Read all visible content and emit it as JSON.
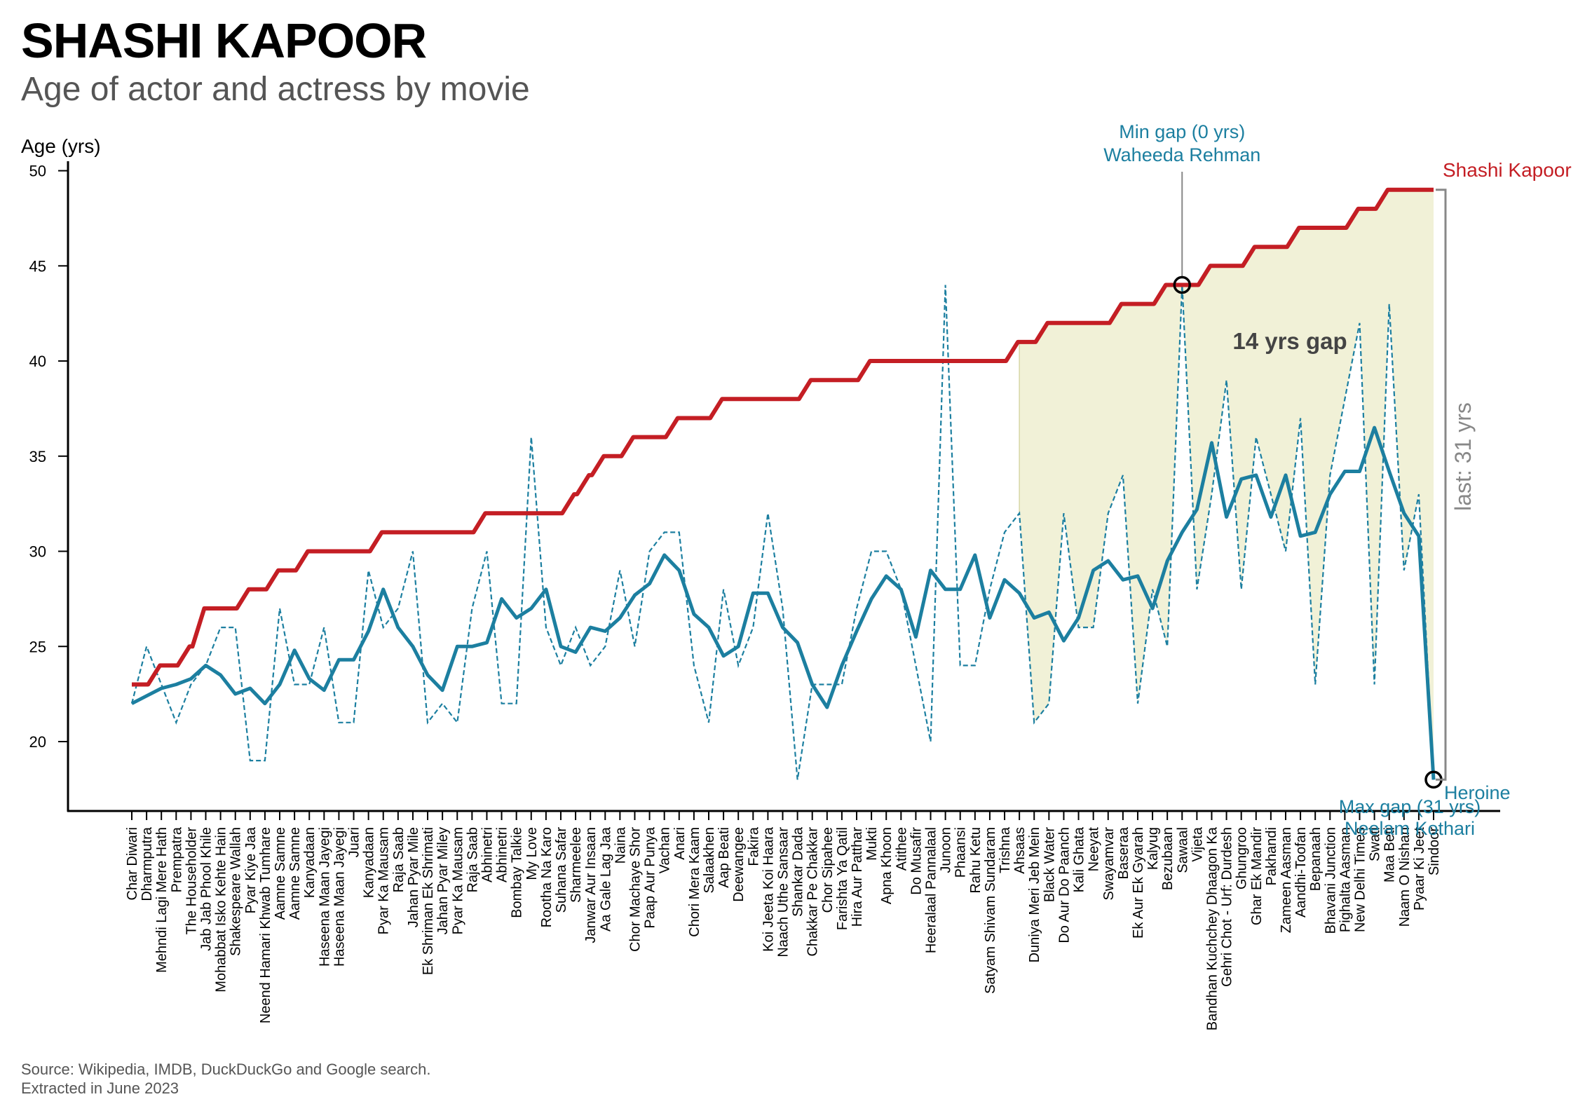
{
  "header": {
    "title": "SHASHI KAPOOR",
    "subtitle": "Age of actor and actress by movie"
  },
  "footer": {
    "source": "Source: Wikipedia, IMDB, DuckDuckGo and Google search.",
    "extracted": "Extracted in June 2023"
  },
  "chart_data": {
    "type": "line",
    "ylabel": "Age (yrs)",
    "ylim": [
      16.5,
      50.5
    ],
    "yticks": [
      20,
      25,
      30,
      35,
      40,
      45,
      50
    ],
    "grid": false,
    "colors": {
      "actor": "#c41e24",
      "actress": "#1c7fa0",
      "gap_fill": "#eeeed0",
      "gap_bracket": "#888888",
      "annotation_text": "#1c7fa0",
      "gap_label": "#444444"
    },
    "categories": [
      "Char Diwari",
      "Dharmputra",
      "Mehndi Lagi Mere Hath",
      "Prempatra",
      "The Householder",
      "Jab Jab Phool Khile",
      "Mohabbat Isko Kehte Hain",
      "Shakespeare Wallah",
      "Pyar Kiye Jaa",
      "Neend Hamari Khwab Tumhare",
      "Aamne Samne",
      "Aamne Samne",
      "Kanyadaan",
      "Haseena Maan Jayegi",
      "Haseena Maan Jayegi",
      "Juari",
      "Kanyadaan",
      "Pyar Ka Mausam",
      "Raja Saab",
      "Jahan Pyar Mile",
      "Ek Shriman Ek Shrimati",
      "Jahan Pyar Miley",
      "Pyar Ka Mausam",
      "Raja Saab",
      "Abhinetri",
      "Abhinetri",
      "Bombay Talkie",
      "My Love",
      "Rootha Na Karo",
      "Suhana Safar",
      "Sharmeelee",
      "Janwar Aur Insaan",
      "Aa Gale Lag Jaa",
      "Naina",
      "Chor Machaye Shor",
      "Paap Aur Punya",
      "Vachan",
      "Anari",
      "Chori Mera Kaam",
      "Salaakhen",
      "Aap Beati",
      "Deewangee",
      "Fakira",
      "Koi Jeeta Koi Haara",
      "Naach Uthe Sansaar",
      "Shankar Dada",
      "Chakkar Pe Chakkar",
      "Chor Sipahee",
      "Farishta Ya Qatil",
      "Hira Aur Patthar",
      "Mukti",
      "Apna Khoon",
      "Atithee",
      "Do Musafir",
      "Heeralaal Pannalaal",
      "Junoon",
      "Phaansi",
      "Rahu Ketu",
      "Satyam Shivam Sundaram",
      "Trishna",
      "Ahsaas",
      "Duniya Meri Jeb Mein",
      "Black Water",
      "Do Aur Do Paanch",
      "Kali Ghata",
      "Neeyat",
      "Swayamvar",
      "Baseraa",
      "Ek Aur Ek Gyarah",
      "Kalyug",
      "Bezubaan",
      "Sawaal",
      "Vijeta",
      "Bandhan Kuchchey Dhaagon Ka",
      "Gehri Chot - Urf: Durdesh",
      "Ghungroo",
      "Ghar Ek Mandir",
      "Pakhandi",
      "Zameen Aasman",
      "Aandhi-Toofan",
      "Bepanaah",
      "Bhavani Junction",
      "Pighalta Aasman",
      "New Delhi Times",
      "Swati",
      "Maa Beti",
      "Naam O Nishan",
      "Pyaar Ki Jeet",
      "Sindoor"
    ],
    "series": [
      {
        "name": "Shashi Kapoor",
        "style": "solid",
        "values": [
          23,
          23,
          24,
          24,
          25,
          27,
          27,
          27,
          28,
          28,
          29,
          29,
          30,
          30,
          30,
          30,
          30,
          31,
          31,
          31,
          31,
          31,
          31,
          31,
          32,
          32,
          32,
          32,
          32,
          32,
          33,
          34,
          35,
          35,
          36,
          36,
          36,
          37,
          37,
          37,
          38,
          38,
          38,
          38,
          38,
          38,
          39,
          39,
          39,
          39,
          40,
          40,
          40,
          40,
          40,
          40,
          40,
          40,
          40,
          40,
          41,
          41,
          42,
          42,
          42,
          42,
          42,
          43,
          43,
          43,
          44,
          44,
          44,
          45,
          45,
          45,
          46,
          46,
          46,
          47,
          47,
          47,
          47,
          48,
          48,
          49,
          49,
          49,
          49
        ]
      },
      {
        "name": "Heroine",
        "style": "dashed",
        "values": [
          22,
          25,
          23,
          21,
          23,
          24,
          26,
          26,
          19,
          19,
          27,
          23,
          23,
          26,
          21,
          21,
          29,
          26,
          27,
          30,
          21,
          22,
          21,
          27,
          30,
          22,
          22,
          36,
          26,
          24,
          26,
          24,
          25,
          29,
          25,
          30,
          31,
          31,
          24,
          21,
          28,
          24,
          26,
          32,
          27,
          18,
          23,
          23,
          23,
          27,
          30,
          30,
          28,
          24,
          20,
          44,
          24,
          24,
          28,
          31,
          32,
          21,
          22,
          32,
          26,
          26,
          32,
          34,
          22,
          28,
          25,
          44,
          28,
          33,
          39,
          28,
          36,
          33,
          30,
          37,
          23,
          34,
          38,
          42,
          23,
          43,
          29,
          33,
          18
        ]
      },
      {
        "name": "Heroine (rolling average)",
        "style": "thick",
        "values": [
          22,
          22.4,
          22.8,
          23,
          23.3,
          24,
          23.5,
          22.5,
          22.8,
          22,
          23,
          24.8,
          23.3,
          22.7,
          24.3,
          24.3,
          25.8,
          28,
          26,
          25,
          23.5,
          22.7,
          25,
          25,
          25.2,
          27.5,
          26.5,
          27,
          28,
          25,
          24.7,
          26,
          25.8,
          26.5,
          27.7,
          28.3,
          29.8,
          29,
          26.7,
          26,
          24.5,
          25,
          27.8,
          27.8,
          26,
          25.2,
          23,
          21.8,
          24,
          25.8,
          27.5,
          28.7,
          28,
          25.5,
          29,
          28,
          28,
          29.8,
          26.5,
          28.5,
          27.8,
          26.5,
          26.8,
          25.3,
          26.5,
          29,
          29.5,
          28.5,
          28.7,
          27,
          29.5,
          31,
          32.2,
          35.7,
          31.8,
          33.8,
          34,
          31.8,
          34,
          30.8,
          31,
          33,
          34.2,
          34.2,
          36.5,
          34.2,
          32,
          30.8,
          18
        ]
      }
    ],
    "series_labels": {
      "actor": "Shashi Kapoor",
      "actress": "Heroine"
    },
    "annotations": {
      "gap_label": "14 yrs gap",
      "last_gap": "last: 31 yrs",
      "min_gap_line1": "Min gap (0 yrs)",
      "min_gap_line2": "Waheeda Rehman",
      "max_gap_line1": "Max gap (31 yrs)",
      "max_gap_line2": "Neelam Kothari",
      "min_gap_movie": "Sawaal",
      "max_gap_movie": "Sindoor",
      "shaded_from": "Ahsaas"
    }
  }
}
